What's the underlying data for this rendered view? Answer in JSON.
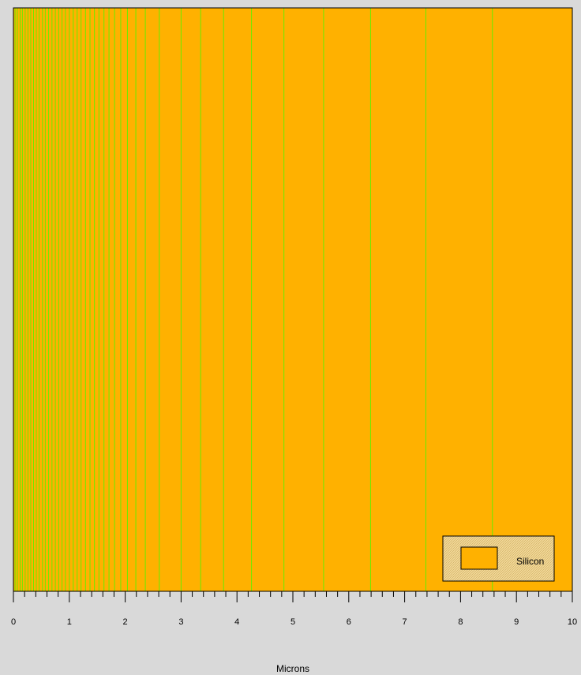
{
  "colors": {
    "background": "#d9d9d9",
    "region_fill": "#ffb100",
    "mesh_line": "#66ee00",
    "frame": "#000000",
    "legend_bg": "#f2d898"
  },
  "chart_data": {
    "type": "mesh-cross-section",
    "xlabel": "Microns",
    "xlim": [
      0,
      10
    ],
    "tick_labels": [
      "0",
      "1",
      "2",
      "3",
      "4",
      "5",
      "6",
      "7",
      "8",
      "9",
      "10"
    ],
    "regions": [
      {
        "material": "Silicon",
        "x_start": 0,
        "x_end": 10
      }
    ],
    "legend": {
      "placement": "bottom-right",
      "entries": [
        {
          "label": "Silicon",
          "color": "#ffb100"
        }
      ]
    },
    "mesh_lines_x": [
      0.03,
      0.07,
      0.12,
      0.16,
      0.21,
      0.26,
      0.31,
      0.36,
      0.41,
      0.46,
      0.52,
      0.57,
      0.63,
      0.69,
      0.75,
      0.81,
      0.87,
      0.93,
      1.0,
      1.07,
      1.14,
      1.21,
      1.29,
      1.37,
      1.45,
      1.53,
      1.62,
      1.71,
      1.81,
      1.92,
      2.04,
      2.19,
      2.36,
      2.61,
      3.0,
      3.35,
      3.76,
      4.26,
      4.84,
      5.55,
      6.39,
      7.38,
      8.57
    ]
  }
}
